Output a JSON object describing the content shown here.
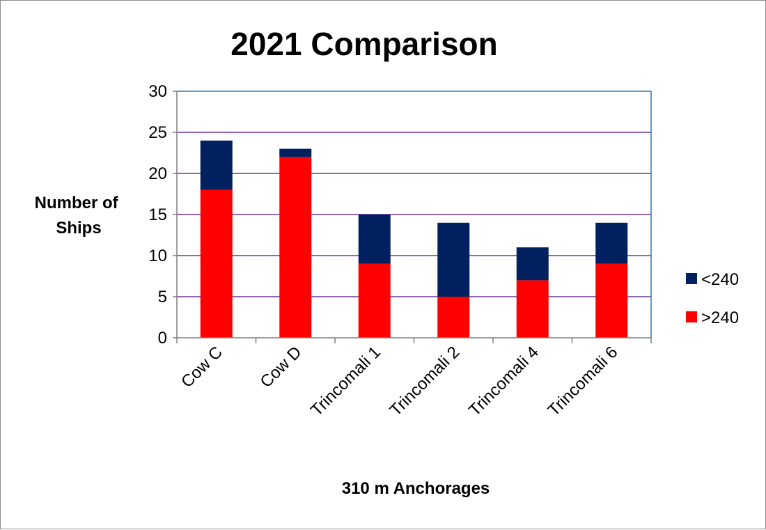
{
  "chart_data": {
    "type": "bar",
    "stacked": true,
    "title": "2021 Comparison",
    "xlabel": "310 m Anchorages",
    "ylabel_lines": [
      "Number of",
      "Ships"
    ],
    "categories": [
      "Cow C",
      "Cow D",
      "Trincomali 1",
      "Trincomali 2",
      "Trincomali 4",
      "Trincomali 6"
    ],
    "series": [
      {
        "name": ">240",
        "values": [
          18,
          22,
          9,
          5,
          7,
          9
        ],
        "color": "#ff0000"
      },
      {
        "name": "<240",
        "values": [
          6,
          1,
          6,
          9,
          4,
          5
        ],
        "color": "#002060"
      }
    ],
    "legend_order": [
      "<240",
      ">240"
    ],
    "ylim": [
      0,
      30
    ],
    "yticks": [
      "0",
      "5",
      "10",
      "15",
      "20",
      "25",
      "30"
    ],
    "grid": true,
    "grid_color": "#7030a0",
    "plot_border_color": "#2e75b6",
    "legend_position": "right"
  }
}
